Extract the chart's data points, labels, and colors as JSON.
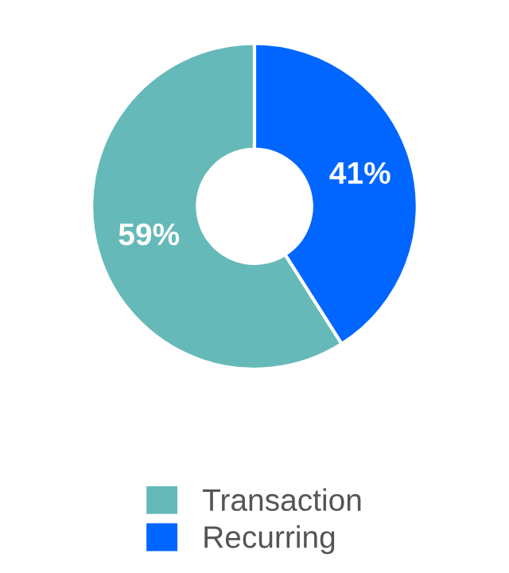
{
  "chart_data": {
    "type": "donut",
    "categories": [
      "Transaction",
      "Recurring"
    ],
    "values": [
      59,
      41
    ],
    "colors": [
      "#66b9b9",
      "#0066ff"
    ],
    "value_labels": [
      "59%",
      "41%"
    ],
    "legend": "bottom"
  }
}
